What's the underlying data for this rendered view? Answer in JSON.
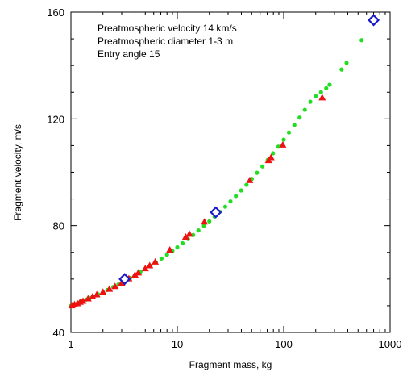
{
  "chart_data": {
    "type": "scatter",
    "title": "",
    "xlabel": "Fragment mass, kg",
    "ylabel": "Fragment velocity, m/s",
    "x_scale": "log",
    "xlim": [
      1,
      1000
    ],
    "ylim": [
      40,
      160
    ],
    "x_ticks": [
      1,
      10,
      100,
      1000
    ],
    "x_tick_labels": [
      "1",
      "10",
      "100",
      "1000"
    ],
    "y_ticks": [
      40,
      80,
      120,
      160
    ],
    "y_tick_labels": [
      "40",
      "80",
      "120",
      "160"
    ],
    "grid": false,
    "annotations": [
      "Preatmospheric velocity 14 km/s",
      "Preatmospheric diameter 1-3 m",
      "Entry angle 15"
    ],
    "series": [
      {
        "marker": "circle",
        "color": "#22dd22",
        "x": [
          1.0,
          1.05,
          1.1,
          1.2,
          1.3,
          1.4,
          1.5,
          1.6,
          1.8,
          2.0,
          2.2,
          2.5,
          2.8,
          3.2,
          3.6,
          4.0,
          4.5,
          5.0,
          5.6,
          6.3,
          7.1,
          8.0,
          9.0,
          10.0,
          11.2,
          12.6,
          14.1,
          15.8,
          17.8,
          20.0,
          22.4,
          25.1,
          28.2,
          31.6,
          35.5,
          39.8,
          44.7,
          50.1,
          56.2,
          63.1,
          70.8,
          79.4,
          89.1,
          100.0,
          112.0,
          126.0,
          141.0,
          158.0,
          178.0,
          200.0,
          224.0,
          251.0,
          270.0,
          350.0,
          390.0,
          540.0
        ],
        "y": [
          50.0,
          50.3,
          50.6,
          51.2,
          51.8,
          52.3,
          52.8,
          53.3,
          54.3,
          55.1,
          55.9,
          57.0,
          58.0,
          59.3,
          60.4,
          61.5,
          62.7,
          63.8,
          65.0,
          66.3,
          67.7,
          69.1,
          70.5,
          71.9,
          73.4,
          75.0,
          76.5,
          78.2,
          79.9,
          81.6,
          83.4,
          85.2,
          87.1,
          89.1,
          91.1,
          93.2,
          95.3,
          97.5,
          99.8,
          102.2,
          104.6,
          107.1,
          109.6,
          112.2,
          114.9,
          117.7,
          120.5,
          123.4,
          126.4,
          128.5,
          130.0,
          131.5,
          132.8,
          138.5,
          141.0,
          149.5
        ]
      },
      {
        "marker": "triangle",
        "color": "#ee1111",
        "x": [
          1.02,
          1.08,
          1.15,
          1.22,
          1.3,
          1.45,
          1.6,
          1.75,
          2.0,
          2.3,
          2.6,
          3.0,
          3.5,
          4.0,
          4.3,
          5.0,
          5.5,
          6.2,
          8.5,
          12.0,
          13.0,
          18.0,
          48.0,
          72.0,
          76.0,
          98.0,
          230.0
        ],
        "y": [
          50.1,
          50.5,
          50.9,
          51.4,
          51.8,
          52.7,
          53.5,
          54.2,
          55.2,
          56.3,
          57.3,
          58.6,
          60.2,
          61.6,
          62.4,
          64.0,
          65.1,
          66.5,
          71.0,
          75.8,
          76.9,
          81.5,
          97.0,
          104.5,
          105.6,
          110.3,
          128.0
        ]
      },
      {
        "marker": "diamond",
        "color": "#1a1acc",
        "x": [
          3.2,
          23.0,
          700.0
        ],
        "y": [
          60.0,
          85.0,
          157.0
        ]
      }
    ]
  }
}
